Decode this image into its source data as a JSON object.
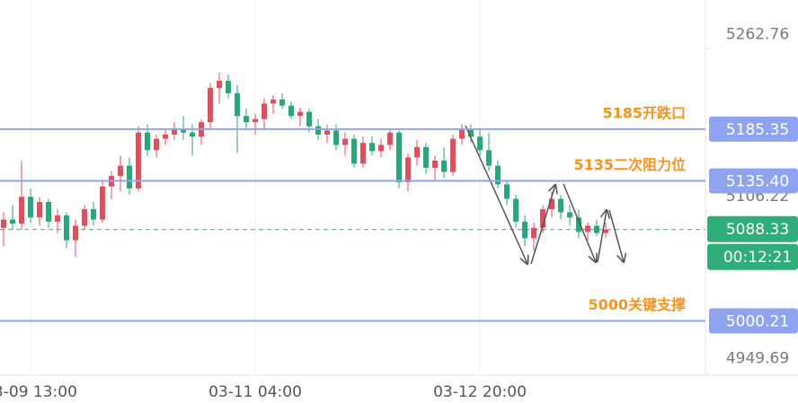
{
  "chart_data": {
    "type": "candlestick",
    "categories": [
      null,
      null,
      null,
      "03-09 13:00",
      null,
      null,
      null,
      null,
      null,
      null,
      null,
      null,
      null,
      null,
      null,
      null,
      null,
      null,
      null,
      null,
      null,
      null,
      null,
      null,
      null,
      null,
      null,
      null,
      "03-11 04:00",
      null,
      null,
      null,
      null,
      null,
      null,
      null,
      null,
      null,
      null,
      null,
      null,
      null,
      null,
      null,
      null,
      null,
      null,
      null,
      null,
      null,
      null,
      null,
      null,
      "03-12 20:00",
      null,
      null,
      null,
      null,
      null,
      null,
      null,
      null,
      null,
      null,
      null,
      null,
      null,
      null
    ],
    "open": [
      5090,
      5098,
      5094,
      5120,
      5100,
      5115,
      5096,
      5102,
      5078,
      5092,
      5108,
      5098,
      5130,
      5140,
      5150,
      5128,
      5182,
      5165,
      5176,
      5180,
      5186,
      5182,
      5178,
      5192,
      5225,
      5232,
      5220,
      5198,
      5192,
      5195,
      5210,
      5214,
      5208,
      5198,
      5202,
      5188,
      5180,
      5184,
      5170,
      5176,
      5152,
      5172,
      5164,
      5170,
      5182,
      5134,
      5158,
      5168,
      5148,
      5155,
      5144,
      5176,
      5186,
      5178,
      5165,
      5150,
      5132,
      5118,
      5096,
      5080,
      5090,
      5108,
      5118,
      5105,
      5100,
      5086,
      5092,
      5085
    ],
    "high": [
      5105,
      5112,
      5155,
      5128,
      5120,
      5118,
      5108,
      5105,
      5098,
      5112,
      5115,
      5135,
      5145,
      5160,
      5158,
      5188,
      5190,
      5180,
      5185,
      5192,
      5198,
      5190,
      5195,
      5230,
      5240,
      5238,
      5228,
      5205,
      5200,
      5215,
      5218,
      5220,
      5212,
      5206,
      5205,
      5195,
      5190,
      5190,
      5182,
      5180,
      5178,
      5178,
      5176,
      5186,
      5184,
      5162,
      5175,
      5172,
      5160,
      5168,
      5180,
      5190,
      5190,
      5185,
      5182,
      5155,
      5136,
      5122,
      5102,
      5095,
      5112,
      5125,
      5122,
      5112,
      5108,
      5095,
      5098,
      5095
    ],
    "low": [
      5072,
      5088,
      5088,
      5095,
      5092,
      5090,
      5085,
      5070,
      5062,
      5088,
      5092,
      5095,
      5118,
      5125,
      5122,
      5125,
      5160,
      5158,
      5170,
      5175,
      5175,
      5160,
      5170,
      5185,
      5210,
      5215,
      5162,
      5185,
      5180,
      5185,
      5200,
      5205,
      5195,
      5188,
      5182,
      5175,
      5172,
      5165,
      5160,
      5148,
      5148,
      5160,
      5158,
      5165,
      5128,
      5125,
      5150,
      5142,
      5135,
      5138,
      5140,
      5170,
      5172,
      5160,
      5145,
      5128,
      5112,
      5090,
      5072,
      5068,
      5085,
      5100,
      5098,
      5092,
      5080,
      5078,
      5082,
      5080
    ],
    "close": [
      5098,
      5094,
      5120,
      5100,
      5115,
      5096,
      5102,
      5078,
      5092,
      5108,
      5098,
      5130,
      5140,
      5150,
      5128,
      5182,
      5165,
      5176,
      5180,
      5186,
      5182,
      5178,
      5192,
      5225,
      5232,
      5220,
      5198,
      5192,
      5195,
      5210,
      5214,
      5208,
      5198,
      5202,
      5188,
      5180,
      5184,
      5170,
      5176,
      5152,
      5172,
      5164,
      5170,
      5182,
      5134,
      5158,
      5168,
      5148,
      5155,
      5144,
      5176,
      5186,
      5178,
      5165,
      5150,
      5132,
      5118,
      5096,
      5080,
      5090,
      5108,
      5118,
      5105,
      5100,
      5086,
      5092,
      5085,
      5088.33
    ],
    "up_color": "#e0505c",
    "down_color": "#27a77a",
    "ylim": [
      4946,
      5310
    ],
    "yticks": [
      5262.76,
      5106.22,
      4949.69
    ],
    "levels": [
      {
        "value": 5185.35,
        "annotation": "5185开跌口"
      },
      {
        "value": {
          "value": 5135.4,
          "label": "5135.40"
        },
        "annotation": "5135二次阻力位"
      },
      {
        "value": 5000.21,
        "annotation": "5000关键支撑"
      }
    ],
    "level_color": "#8fa4f0",
    "annotation_color": "#f7931e",
    "last_price": 5088.33,
    "last_price_color": "#2fae7a",
    "countdown": "00:12:21"
  }
}
